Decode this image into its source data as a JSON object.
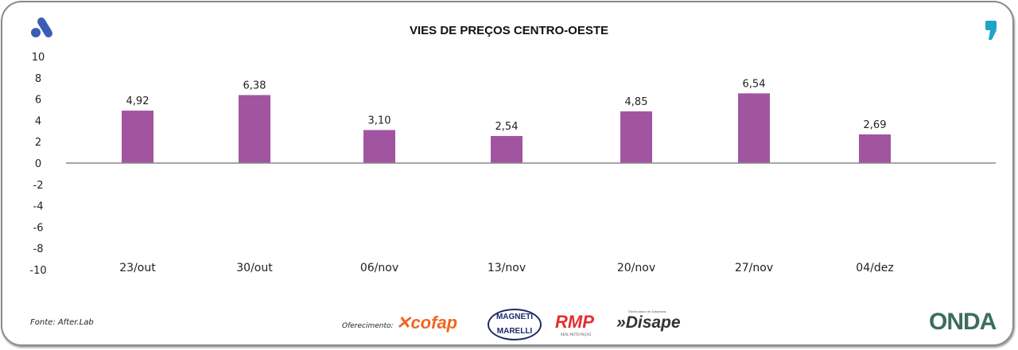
{
  "colors": {
    "bar": "#a155a1",
    "axis": "#888888",
    "brand_blue": "#3b5db5",
    "accent_teal": "#1fa4c8"
  },
  "chart_data": {
    "type": "bar",
    "title": "VIES DE PREÇOS CENTRO-OESTE",
    "categories": [
      "23/out",
      "30/out",
      "06/nov",
      "13/nov",
      "20/nov",
      "27/nov",
      "04/dez"
    ],
    "values": [
      4.92,
      6.38,
      3.1,
      2.54,
      4.85,
      6.54,
      2.69
    ],
    "data_labels": [
      "4,92",
      "6,38",
      "3,10",
      "2,54",
      "4,85",
      "6,54",
      "2,69"
    ],
    "ylim": [
      -10,
      10
    ],
    "yticks": [
      10,
      8,
      6,
      4,
      2,
      0,
      -2,
      -4,
      -6,
      -8,
      -10
    ],
    "grid": false,
    "xlabel": "",
    "ylabel": ""
  },
  "footer": {
    "source": "Fonte: After.Lab",
    "sponsor_label": "Oferecimento:",
    "sponsors": [
      "cofap",
      "MAGNETI MARELLI",
      "RMP",
      "Disape"
    ],
    "rmp_tagline": "REAL MOTO PEÇAS",
    "disape_tagline": "Distribuidora de Autopeças",
    "partner_logo": "ONDA"
  },
  "icons": {
    "left_logo": "a-logo-icon",
    "right_logo": "comma-logo-icon"
  }
}
